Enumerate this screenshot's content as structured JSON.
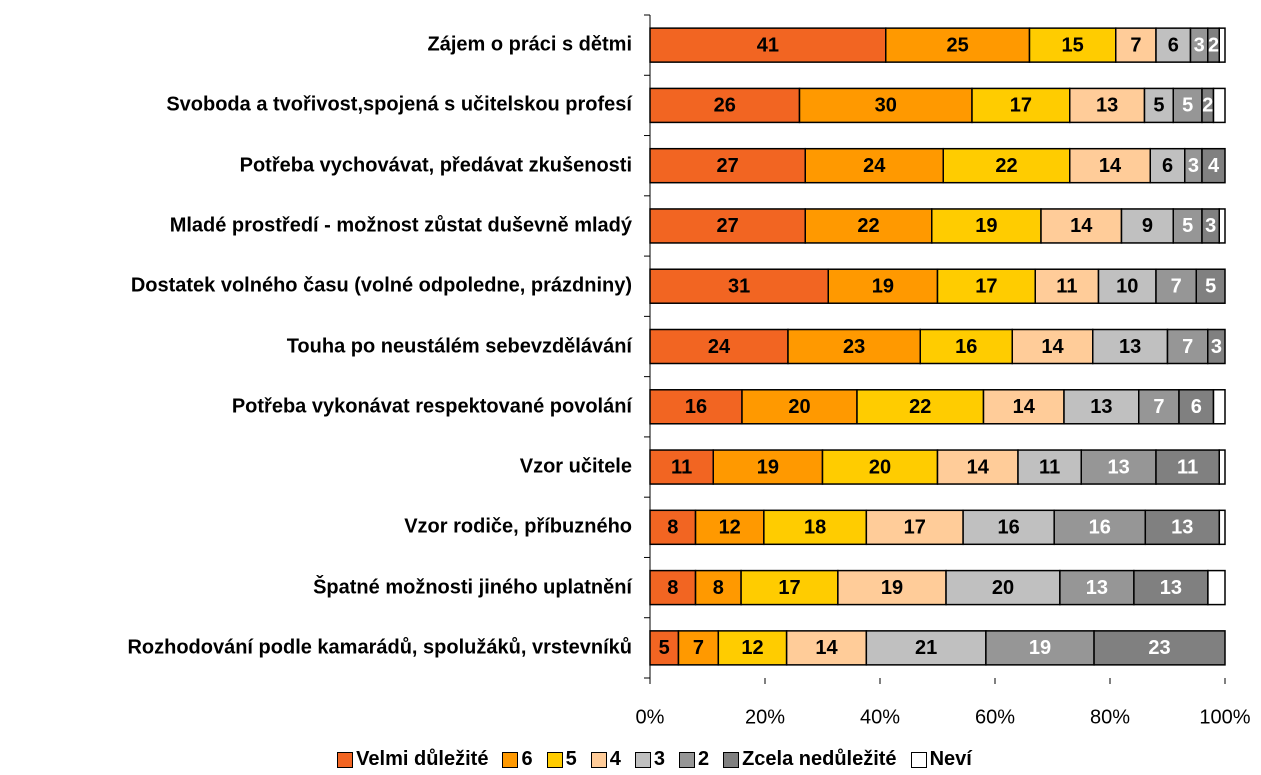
{
  "chart_data": {
    "type": "stacked_bar_horizontal_percent",
    "categories": [
      "Zájem o práci s dětmi",
      "Svoboda a tvořivost,spojená s učitelskou profesí",
      "Potřeba vychovávat, předávat zkušenosti",
      "Mladé prostředí - možnost zůstat duševně mladý",
      "Dostatek volného času (volné odpoledne, prázdniny)",
      "Touha po neustálém sebevzdělávání",
      "Potřeba vykonávat respektované povolání",
      "Vzor učitele",
      "Vzor rodiče, příbuzného",
      "Špatné možnosti jiného uplatnění",
      "Rozhodování podle kamarádů, spolužáků, vrstevníků"
    ],
    "series": [
      {
        "name": "Velmi důležité",
        "color": "#f26522",
        "label_color": "#000000",
        "values": [
          41,
          26,
          27,
          27,
          31,
          24,
          16,
          11,
          8,
          8,
          5
        ],
        "value_labels": [
          "41",
          "26",
          "27",
          "27",
          "31",
          "24",
          "16",
          "11",
          "8",
          "8",
          "5"
        ]
      },
      {
        "name": "6",
        "color": "#ff9900",
        "label_color": "#000000",
        "values": [
          25,
          30,
          24,
          22,
          19,
          23,
          20,
          19,
          12,
          8,
          7
        ],
        "value_labels": [
          "25",
          "30",
          "24",
          "22",
          "19",
          "23",
          "20",
          "19",
          "12",
          "8",
          "7"
        ]
      },
      {
        "name": "5",
        "color": "#ffcc00",
        "label_color": "#000000",
        "values": [
          15,
          17,
          22,
          19,
          17,
          16,
          22,
          20,
          18,
          17,
          12
        ],
        "value_labels": [
          "15",
          "17",
          "22",
          "19",
          "17",
          "16",
          "22",
          "20",
          "18",
          "17",
          "12"
        ]
      },
      {
        "name": "4",
        "color": "#ffcc99",
        "label_color": "#000000",
        "values": [
          7,
          13,
          14,
          14,
          11,
          14,
          14,
          14,
          17,
          19,
          14
        ],
        "value_labels": [
          "7",
          "13",
          "14",
          "14",
          "11",
          "14",
          "14",
          "14",
          "17",
          "19",
          "14"
        ]
      },
      {
        "name": "3",
        "color": "#c0c0c0",
        "label_color": "#000000",
        "values": [
          6,
          5,
          6,
          9,
          10,
          13,
          13,
          11,
          16,
          20,
          21
        ],
        "value_labels": [
          "6",
          "5",
          "6",
          "9",
          "10",
          "13",
          "13",
          "11",
          "16",
          "20",
          "21"
        ]
      },
      {
        "name": "2",
        "color": "#969696",
        "label_color": "#ffffff",
        "values": [
          3,
          5,
          3,
          5,
          7,
          7,
          7,
          13,
          16,
          13,
          19
        ],
        "value_labels": [
          "3",
          "5",
          "3",
          "5",
          "7",
          "7",
          "7",
          "13",
          "16",
          "13",
          "19"
        ]
      },
      {
        "name": "Zcela nedůležité",
        "color": "#808080",
        "label_color": "#ffffff",
        "values": [
          2,
          2,
          4,
          3,
          5,
          3,
          6,
          11,
          13,
          13,
          23
        ],
        "value_labels": [
          "2",
          "2",
          "4",
          "3",
          "5",
          "3",
          "6",
          "11",
          "13",
          "13",
          "23"
        ]
      },
      {
        "name": "Neví",
        "color": "#ffffff",
        "values": [
          1,
          2,
          0,
          1,
          0,
          0,
          2,
          1,
          1,
          3,
          0
        ]
      }
    ],
    "xlim": [
      0,
      100
    ],
    "xticks": [
      {
        "value": 0,
        "label": "0%"
      },
      {
        "value": 20,
        "label": "20%"
      },
      {
        "value": 40,
        "label": "40%"
      },
      {
        "value": 60,
        "label": "60%"
      },
      {
        "value": 80,
        "label": "80%"
      },
      {
        "value": 100,
        "label": "100%"
      }
    ],
    "legend": "bottom"
  }
}
